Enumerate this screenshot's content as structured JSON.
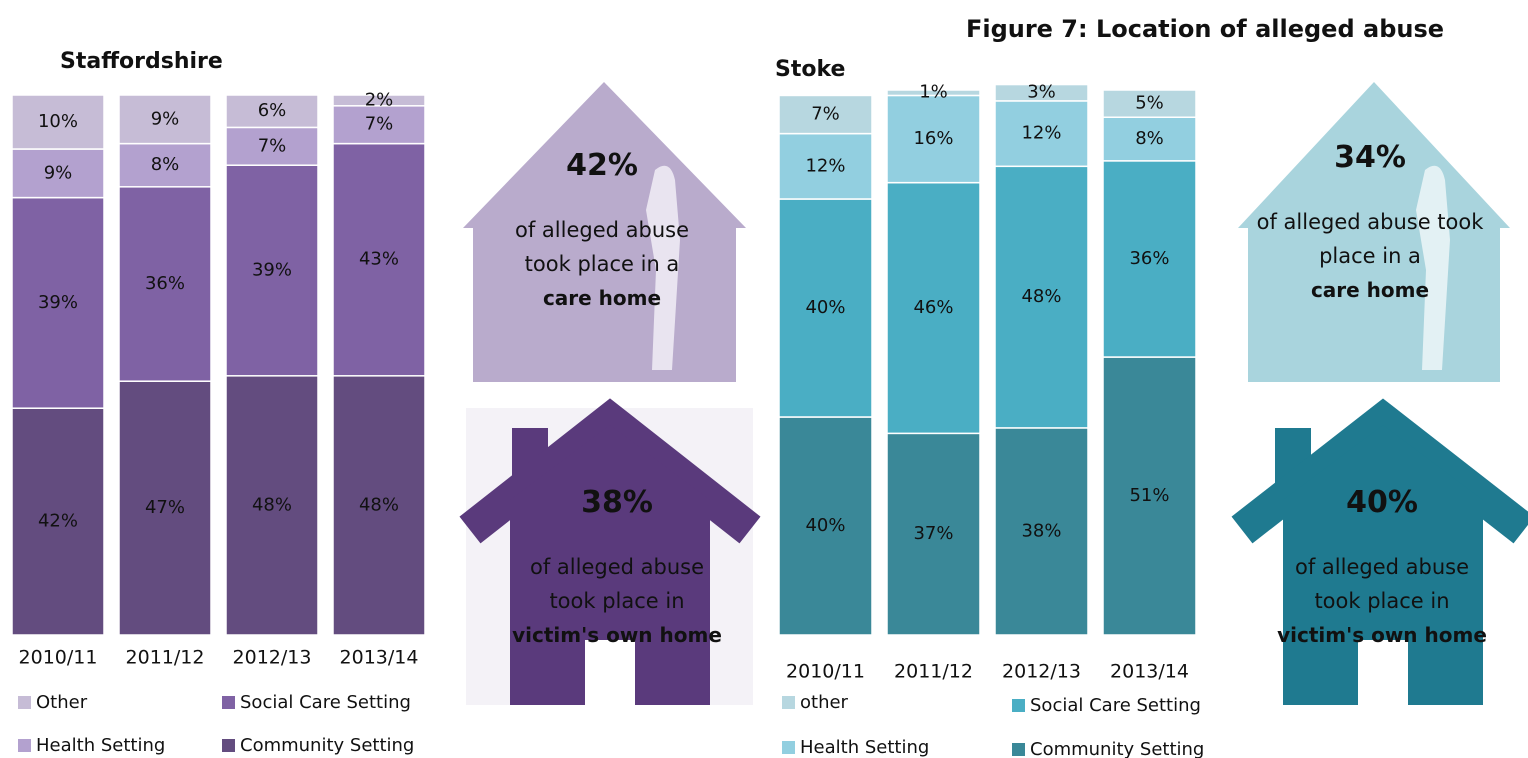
{
  "title": "Figure 7: Location of alleged abuse",
  "chart_data": [
    {
      "type": "stacked_bar",
      "title": "Staffordshire",
      "categories": [
        "2010/11",
        "2011/12",
        "2012/13",
        "2013/14"
      ],
      "ylim": [
        0,
        100
      ],
      "series": [
        {
          "name": "Community Setting",
          "color": "#634c7f",
          "values": [
            42,
            47,
            48,
            48
          ],
          "value_labels": [
            "42%",
            "47%",
            "48%",
            "48%"
          ]
        },
        {
          "name": "Social Care Setting",
          "color": "#7f62a4",
          "values": [
            39,
            36,
            39,
            43
          ],
          "value_labels": [
            "39%",
            "36%",
            "39%",
            "43%"
          ]
        },
        {
          "name": "Health Setting",
          "color": "#b3a1cf",
          "values": [
            9,
            8,
            7,
            7
          ],
          "value_labels": [
            "9%",
            "8%",
            "7%",
            "7%"
          ]
        },
        {
          "name": "Other",
          "color": "#c6bcd6",
          "values": [
            10,
            9,
            6,
            2
          ],
          "value_labels": [
            "10%",
            "9%",
            "6%",
            "2%"
          ]
        }
      ],
      "callouts": [
        {
          "headline": "42%",
          "text": "of alleged abuse took place in a",
          "emphasis": "care home"
        },
        {
          "headline": "38%",
          "text": "of alleged abuse took place in",
          "emphasis": "victim's own home"
        }
      ]
    },
    {
      "type": "stacked_bar",
      "title": "Stoke",
      "categories": [
        "2010/11",
        "2011/12",
        "2012/13",
        "2013/14"
      ],
      "ylim": [
        0,
        100
      ],
      "series": [
        {
          "name": "Community Setting",
          "color": "#3a8898",
          "values": [
            40,
            37,
            38,
            51
          ],
          "value_labels": [
            "40%",
            "37%",
            "38%",
            "51%"
          ]
        },
        {
          "name": "Social Care Setting",
          "color": "#4aaec4",
          "values": [
            40,
            46,
            48,
            36
          ],
          "value_labels": [
            "40%",
            "46%",
            "48%",
            "36%"
          ]
        },
        {
          "name": "Health Setting",
          "color": "#92cfe0",
          "values": [
            12,
            16,
            12,
            8
          ],
          "value_labels": [
            "12%",
            "16%",
            "12%",
            "8%"
          ]
        },
        {
          "name": "other",
          "color": "#b7d7e0",
          "values": [
            7,
            1,
            3,
            5
          ],
          "value_labels": [
            "7%",
            "1%",
            "3%",
            "5%"
          ]
        }
      ],
      "callouts": [
        {
          "headline": "34%",
          "text": "of alleged abuse took place in a",
          "emphasis": "care home"
        },
        {
          "headline": "40%",
          "text": "of alleged abuse took place in",
          "emphasis": "victim's own home"
        }
      ]
    }
  ]
}
